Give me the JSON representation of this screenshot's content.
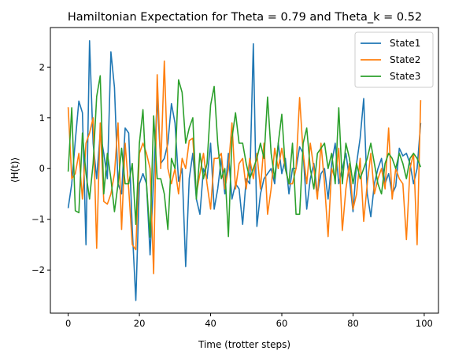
{
  "chart_data": {
    "type": "line",
    "title": "Hamiltonian Expectation for Theta = 0.79 and Theta_k = 0.52",
    "xlabel": "Time (trotter steps)",
    "ylabel": "⟨H(t)⟩",
    "xlim": [
      -5,
      104
    ],
    "ylim": [
      -2.85,
      2.78
    ],
    "xticks": [
      0,
      20,
      40,
      60,
      80,
      100
    ],
    "yticks": [
      -2,
      -1,
      0,
      1,
      2
    ],
    "grid": false,
    "legend": "top-right",
    "series": [
      {
        "name": "State1",
        "color": "#1f77b4",
        "values": [
          -0.78,
          -0.3,
          0.55,
          1.33,
          1.1,
          -1.5,
          2.52,
          0.5,
          -0.2,
          0.7,
          0.3,
          -0.2,
          2.3,
          1.6,
          -0.3,
          -0.5,
          0.8,
          0.7,
          -1.2,
          -2.6,
          -0.3,
          -0.1,
          -0.3,
          -1.7,
          -0.2,
          1.4,
          0.1,
          0.2,
          0.5,
          1.28,
          0.9,
          -0.25,
          0.0,
          -1.93,
          -0.2,
          0.3,
          -0.6,
          -0.9,
          0.0,
          -0.2,
          0.5,
          -0.8,
          -0.4,
          0.2,
          -0.5,
          0.3,
          -0.6,
          -0.3,
          -0.4,
          -1.1,
          -0.2,
          -0.3,
          2.46,
          -1.14,
          -0.5,
          -0.2,
          -0.1,
          0.0,
          -0.3,
          0.5,
          -0.1,
          0.2,
          -0.5,
          0.0,
          0.0,
          0.43,
          0.3,
          -0.8,
          -0.2,
          0.1,
          -0.5,
          -0.1,
          0.0,
          -0.6,
          0.1,
          0.5,
          -0.3,
          0.0,
          0.3,
          -0.2,
          -0.85,
          0.1,
          0.6,
          1.38,
          -0.5,
          -0.95,
          -0.3,
          0.0,
          0.2,
          -0.3,
          -0.1,
          -0.5,
          -0.35,
          0.4,
          0.25,
          0.3,
          0.1,
          -0.3,
          0.0,
          0.9
        ]
      },
      {
        "name": "State2",
        "color": "#ff7f0e",
        "values": [
          1.21,
          -0.2,
          -0.1,
          0.3,
          -0.6,
          0.5,
          0.7,
          1.0,
          -1.57,
          0.9,
          -0.65,
          -0.7,
          -0.5,
          -0.1,
          0.9,
          -1.2,
          0.5,
          -0.4,
          -1.5,
          -1.6,
          0.3,
          0.5,
          0.3,
          0.0,
          -2.07,
          1.85,
          0.0,
          2.12,
          0.0,
          -0.3,
          0.0,
          -0.5,
          0.2,
          0.0,
          0.55,
          0.6,
          -0.5,
          -0.1,
          0.3,
          -0.3,
          -0.8,
          0.2,
          0.2,
          0.3,
          -0.4,
          0.0,
          0.9,
          -0.4,
          0.1,
          0.2,
          -0.4,
          0.2,
          -0.2,
          0.3,
          -0.4,
          0.5,
          -0.9,
          -0.4,
          0.4,
          0.0,
          0.4,
          0.0,
          -0.3,
          -0.3,
          0.0,
          1.4,
          0.3,
          -0.3,
          0.5,
          0.0,
          -0.6,
          0.5,
          -0.3,
          -1.34,
          0.0,
          -0.2,
          0.4,
          -1.22,
          -0.4,
          0.1,
          -0.8,
          -0.5,
          0.2,
          -1.04,
          -0.3,
          0.3,
          -0.5,
          -0.2,
          0.0,
          -0.4,
          0.8,
          -0.6,
          0.0,
          -0.2,
          -0.3,
          -1.4,
          0.0,
          0.3,
          -1.5,
          1.35
        ]
      },
      {
        "name": "State3",
        "color": "#2ca02c",
        "values": [
          -0.06,
          1.2,
          -0.83,
          -0.87,
          0.7,
          -0.1,
          -0.6,
          0.1,
          1.42,
          1.83,
          -0.5,
          0.3,
          -0.2,
          -0.85,
          -0.3,
          0.4,
          -0.3,
          -0.3,
          0.1,
          -1.1,
          0.5,
          1.16,
          -0.3,
          -1.35,
          1.04,
          -0.2,
          -0.2,
          -0.5,
          -1.2,
          0.2,
          0.0,
          1.75,
          1.5,
          0.5,
          0.8,
          1.0,
          -0.6,
          0.3,
          -0.2,
          0.1,
          1.25,
          1.62,
          0.5,
          -0.2,
          0.0,
          -1.34,
          0.6,
          1.1,
          0.5,
          0.5,
          0.1,
          -0.2,
          0.0,
          0.2,
          0.5,
          0.2,
          1.41,
          0.3,
          -0.2,
          0.5,
          1.07,
          0.0,
          -0.3,
          0.5,
          -0.9,
          -0.9,
          0.5,
          0.8,
          0.0,
          -0.4,
          0.3,
          0.4,
          0.5,
          0.0,
          0.3,
          -0.3,
          1.2,
          -0.3,
          0.5,
          0.2,
          -0.3,
          0.1,
          -0.2,
          0.0,
          0.2,
          0.5,
          0.1,
          -0.3,
          -0.5,
          0.1,
          0.3,
          0.2,
          0.0,
          0.3,
          0.1,
          -0.2,
          0.2,
          0.3,
          0.2,
          0.03
        ]
      }
    ]
  }
}
